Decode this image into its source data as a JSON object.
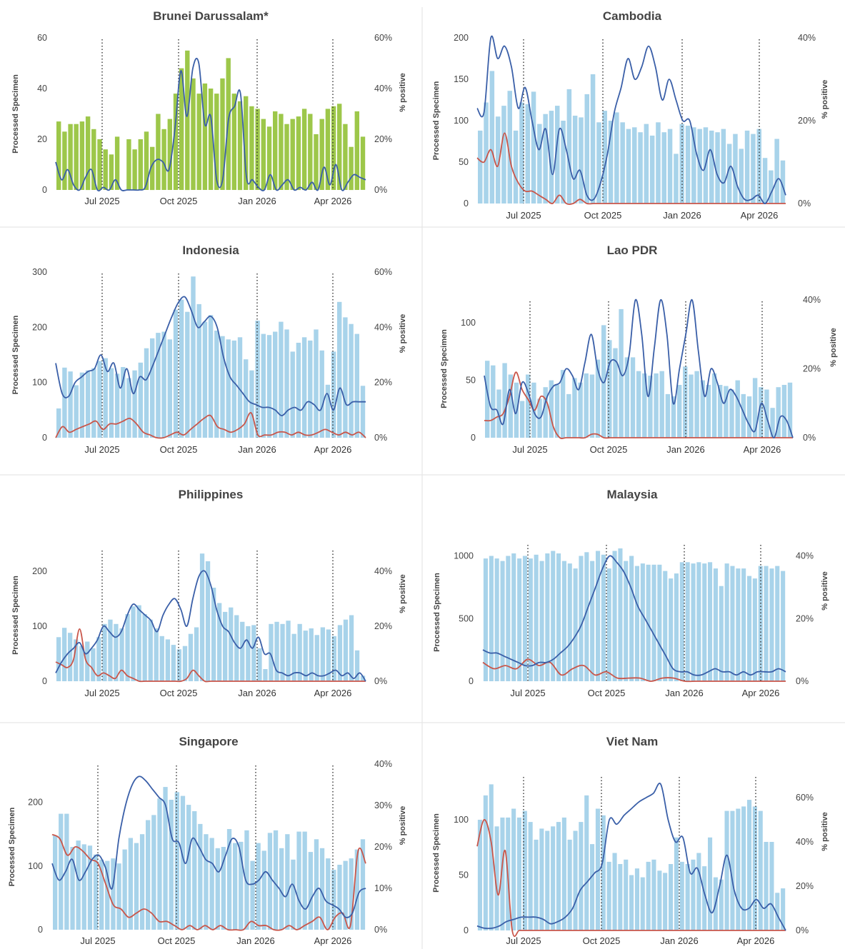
{
  "colors": {
    "bar_default": "#a8d3ea",
    "bar_brunei": "#9dc74a",
    "line_blue": "#3a5fa8",
    "line_red": "#c9564a",
    "divider": "#e2e2e2",
    "dotted_marker": "#333333"
  },
  "shared": {
    "left_axis_label": "Processed Specimen",
    "right_axis_label": "% positive",
    "month_markers": [
      "Jul 2025",
      "Oct 2025",
      "Jan 2026",
      "Apr 2026"
    ]
  },
  "chart_data": [
    {
      "type": "bar",
      "title": "Brunei Darussalam*",
      "ylabel": "Processed Specimen",
      "y2label": "% positive",
      "ylim": [
        0,
        60
      ],
      "yticks": [
        0,
        20,
        40,
        60
      ],
      "y2lim": [
        0,
        60
      ],
      "y2ticks": [
        "0%",
        "20%",
        "40%",
        "60%"
      ],
      "x": [
        "Jul 2025",
        "Oct 2025",
        "Jan 2026",
        "Apr 2026"
      ],
      "bar_color": "#9dc74a",
      "bars": [
        27,
        23,
        26,
        26,
        27,
        29,
        24,
        20,
        16,
        14,
        21,
        0,
        20,
        16,
        20,
        23,
        17,
        30,
        24,
        28,
        38,
        48,
        55,
        44,
        38,
        42,
        40,
        38,
        44,
        52,
        38,
        35,
        37,
        33,
        32,
        28,
        25,
        31,
        30,
        26,
        28,
        29,
        32,
        30,
        22,
        28,
        32,
        33,
        34,
        26,
        17,
        31,
        21
      ],
      "blue": [
        11,
        4,
        8,
        2,
        0,
        5,
        8,
        0,
        1,
        0,
        4,
        0,
        0,
        0,
        0,
        1,
        9,
        12,
        11,
        8,
        24,
        47,
        29,
        48,
        50,
        26,
        29,
        4,
        4,
        28,
        33,
        38,
        5,
        4,
        1,
        0,
        6,
        0,
        2,
        4,
        0,
        1,
        0,
        3,
        0,
        9,
        2,
        10,
        0,
        3,
        6,
        5,
        4
      ],
      "red": []
    },
    {
      "type": "bar",
      "title": "Cambodia",
      "ylabel": "Processed Specimen",
      "y2label": "% positive",
      "ylim": [
        0,
        200
      ],
      "yticks": [
        0,
        50,
        100,
        150,
        200
      ],
      "y2lim": [
        0,
        40
      ],
      "y2ticks": [
        "0%",
        "20%",
        "40%"
      ],
      "x": [
        "Jul 2025",
        "Oct 2025",
        "Jan 2026",
        "Apr 2026"
      ],
      "bar_color": "#a8d3ea",
      "bars": [
        88,
        122,
        160,
        105,
        118,
        136,
        88,
        122,
        120,
        135,
        96,
        108,
        112,
        118,
        100,
        138,
        106,
        104,
        132,
        156,
        98,
        112,
        100,
        110,
        98,
        90,
        92,
        86,
        96,
        82,
        98,
        86,
        90,
        60,
        96,
        94,
        92,
        90,
        92,
        88,
        86,
        90,
        72,
        84,
        66,
        88,
        84,
        90,
        55,
        40,
        78,
        52
      ],
      "blue": [
        23,
        22,
        40,
        35,
        38,
        33,
        23,
        28,
        20,
        13,
        18,
        7,
        18,
        13,
        6,
        8,
        2,
        1,
        5,
        12,
        22,
        28,
        35,
        30,
        33,
        38,
        33,
        25,
        30,
        25,
        20,
        20,
        12,
        8,
        13,
        7,
        5,
        9,
        4,
        1,
        1,
        2,
        0,
        3,
        6,
        2
      ],
      "red": [
        11,
        10,
        13,
        9,
        17,
        9,
        5,
        3,
        3,
        2,
        1,
        0,
        2,
        0,
        0,
        1,
        0,
        0,
        0,
        0,
        0,
        0,
        0,
        0,
        0,
        0,
        0,
        0,
        0,
        0,
        0,
        0,
        0,
        0,
        0,
        0,
        0,
        0,
        0,
        0,
        0,
        0,
        0,
        0,
        0,
        0
      ]
    },
    {
      "type": "bar",
      "title": "Indonesia",
      "ylabel": "Processed Specimen",
      "y2label": "% positive",
      "ylim": [
        0,
        300
      ],
      "yticks": [
        0,
        100,
        200,
        300
      ],
      "y2lim": [
        0,
        60
      ],
      "y2ticks": [
        "0%",
        "20%",
        "40%",
        "60%"
      ],
      "x": [
        "Jul 2025",
        "Oct 2025",
        "Jan 2026",
        "Apr 2026"
      ],
      "bar_color": "#a8d3ea",
      "bars": [
        53,
        127,
        120,
        95,
        118,
        122,
        126,
        139,
        144,
        126,
        116,
        128,
        108,
        122,
        136,
        162,
        180,
        190,
        192,
        178,
        232,
        250,
        228,
        292,
        242,
        210,
        222,
        194,
        184,
        178,
        176,
        182,
        142,
        122,
        212,
        188,
        186,
        192,
        210,
        196,
        156,
        172,
        182,
        176,
        196,
        158,
        96,
        156,
        246,
        218,
        206,
        188,
        94
      ],
      "blue": [
        27,
        16,
        15,
        20,
        22,
        24,
        25,
        30,
        24,
        27,
        18,
        25,
        16,
        22,
        21,
        26,
        32,
        38,
        44,
        49,
        51,
        46,
        40,
        42,
        44,
        40,
        29,
        22,
        19,
        16,
        13,
        12,
        11,
        11,
        10,
        8,
        10,
        11,
        10,
        13,
        12,
        10,
        16,
        10,
        18,
        12,
        13,
        13,
        13
      ],
      "red": [
        0,
        4,
        2,
        3,
        4,
        5,
        6,
        3,
        5,
        5,
        6,
        7,
        5,
        2,
        1,
        0,
        0,
        1,
        2,
        1,
        3,
        5,
        7,
        8,
        4,
        3,
        2,
        3,
        5,
        9,
        1,
        1,
        1,
        2,
        2,
        1,
        2,
        1,
        1,
        2,
        3,
        2,
        1,
        2,
        1,
        2,
        0
      ]
    },
    {
      "type": "bar",
      "title": "Lao PDR",
      "ylabel": "Processed Specimen",
      "y2label": "% positive",
      "ylim": [
        0,
        120
      ],
      "yticks": [
        0,
        50,
        100
      ],
      "y2lim": [
        0,
        40
      ],
      "y2ticks": [
        "0%",
        "20%",
        "40%"
      ],
      "x": [
        "Jul 2025",
        "Oct 2025",
        "Jan 2026",
        "Apr 2026"
      ],
      "bar_color": "#a8d3ea",
      "bars": [
        67,
        63,
        42,
        65,
        55,
        48,
        32,
        55,
        48,
        34,
        44,
        50,
        46,
        59,
        38,
        52,
        48,
        56,
        55,
        68,
        98,
        85,
        78,
        112,
        70,
        70,
        58,
        56,
        54,
        56,
        58,
        38,
        36,
        46,
        62,
        55,
        58,
        50,
        46,
        56,
        46,
        45,
        42,
        50,
        38,
        36,
        52,
        44,
        42,
        26,
        44,
        46,
        48
      ],
      "blue": [
        18,
        9,
        8,
        4,
        14,
        7,
        16,
        13,
        7,
        6,
        12,
        15,
        16,
        20,
        18,
        14,
        22,
        30,
        20,
        16,
        22,
        22,
        18,
        24,
        40,
        30,
        12,
        26,
        40,
        30,
        10,
        20,
        30,
        40,
        25,
        12,
        20,
        16,
        10,
        14,
        12,
        8,
        4,
        2,
        10,
        5,
        0,
        6,
        5,
        0
      ],
      "red": [
        5,
        5,
        6,
        7,
        12,
        19,
        14,
        11,
        8,
        12,
        10,
        3,
        0,
        0,
        0,
        0,
        0,
        1,
        1,
        0,
        0,
        0,
        0,
        0,
        0,
        0,
        0,
        0,
        0,
        0,
        0,
        0,
        0,
        0,
        0,
        0,
        0,
        0,
        0,
        0,
        0,
        0,
        0,
        0,
        0,
        0,
        0,
        0,
        0,
        0
      ]
    },
    {
      "type": "bar",
      "title": "Philippines",
      "ylabel": "Processed Specimen",
      "y2label": "% positive",
      "ylim": [
        0,
        240
      ],
      "yticks": [
        0,
        100,
        200
      ],
      "y2lim": [
        0,
        48
      ],
      "y2ticks": [
        "0%",
        "20%",
        "40%"
      ],
      "x": [
        "Jul 2025",
        "Oct 2025",
        "Jan 2026",
        "Apr 2026"
      ],
      "bar_color": "#a8d3ea",
      "bars": [
        80,
        97,
        88,
        76,
        64,
        72,
        60,
        80,
        104,
        112,
        104,
        96,
        122,
        136,
        138,
        122,
        112,
        96,
        82,
        76,
        66,
        58,
        64,
        86,
        98,
        232,
        218,
        170,
        142,
        126,
        134,
        120,
        108,
        100,
        102,
        60,
        22,
        104,
        108,
        104,
        110,
        86,
        104,
        92,
        96,
        84,
        98,
        94,
        82,
        102,
        112,
        120,
        56,
        10
      ],
      "blue": [
        3,
        7,
        10,
        12,
        14,
        10,
        12,
        15,
        20,
        18,
        16,
        18,
        24,
        28,
        26,
        24,
        22,
        18,
        24,
        28,
        30,
        26,
        20,
        30,
        38,
        40,
        35,
        26,
        20,
        18,
        14,
        12,
        15,
        12,
        16,
        10,
        10,
        4,
        3,
        2,
        3,
        3,
        2,
        3,
        2,
        2,
        3,
        4,
        2,
        3,
        1,
        3,
        0
      ],
      "red": [
        7,
        6,
        5,
        8,
        19,
        8,
        5,
        2,
        3,
        2,
        1,
        4,
        2,
        1,
        0,
        0,
        0,
        0,
        0,
        0,
        0,
        0,
        1,
        4,
        2,
        0,
        0,
        0,
        0,
        0,
        0,
        0,
        0,
        0,
        0,
        0,
        0,
        0,
        0,
        0,
        0,
        0,
        0,
        0,
        0,
        0,
        0,
        0,
        0,
        0,
        0,
        0,
        0
      ]
    },
    {
      "type": "bar",
      "title": "Malaysia",
      "ylabel": "Processed Specimen",
      "y2label": "% positive",
      "ylim": [
        0,
        1100
      ],
      "yticks": [
        0,
        500,
        1000
      ],
      "y2lim": [
        0,
        44
      ],
      "y2ticks": [
        "0%",
        "20%",
        "40%"
      ],
      "x": [
        "Jul 2025",
        "Oct 2025",
        "Jan 2026",
        "Apr 2026"
      ],
      "bar_color": "#a8d3ea",
      "bars": [
        980,
        1000,
        980,
        960,
        1000,
        1020,
        980,
        1000,
        980,
        1010,
        960,
        1020,
        1040,
        1020,
        960,
        940,
        900,
        1000,
        1030,
        960,
        1040,
        1010,
        900,
        1040,
        1060,
        960,
        1000,
        920,
        940,
        930,
        930,
        930,
        880,
        820,
        860,
        950,
        950,
        940,
        950,
        940,
        950,
        900,
        760,
        940,
        920,
        900,
        900,
        840,
        820,
        920,
        920,
        900,
        920,
        880
      ],
      "blue": [
        10,
        9,
        9,
        8,
        7,
        6,
        5,
        5,
        6,
        6,
        7,
        9,
        11,
        14,
        18,
        24,
        30,
        36,
        40,
        38,
        35,
        30,
        24,
        20,
        16,
        12,
        8,
        4,
        3,
        3,
        2,
        2,
        3,
        4,
        3,
        3,
        2,
        3,
        2,
        3,
        3,
        3,
        4,
        3
      ],
      "red": [
        6,
        4,
        5,
        4,
        7,
        5,
        6,
        2,
        4,
        5,
        2,
        3,
        1,
        1,
        1,
        0,
        1,
        1,
        0,
        0,
        0,
        0,
        0,
        0,
        0,
        0,
        0,
        0
      ]
    },
    {
      "type": "bar",
      "title": "Singapore",
      "ylabel": "Processed Specimen",
      "y2label": "% positive",
      "ylim": [
        0,
        260
      ],
      "yticks": [
        0,
        100,
        200
      ],
      "y2lim": [
        0,
        40
      ],
      "y2ticks": [
        "0%",
        "10%",
        "20%",
        "30%",
        "40%"
      ],
      "x": [
        "Jul 2025",
        "Oct 2025",
        "Jan 2026",
        "Apr 2026"
      ],
      "bar_color": "#a8d3ea",
      "bars": [
        148,
        182,
        182,
        130,
        140,
        134,
        132,
        118,
        110,
        108,
        112,
        104,
        126,
        144,
        136,
        150,
        172,
        180,
        206,
        224,
        204,
        216,
        210,
        196,
        186,
        166,
        150,
        144,
        128,
        130,
        158,
        136,
        138,
        156,
        108,
        136,
        124,
        152,
        156,
        128,
        150,
        110,
        154,
        154,
        122,
        142,
        128,
        112,
        94,
        102,
        108,
        112,
        126,
        142
      ],
      "blue": [
        16,
        12,
        14,
        17,
        12,
        14,
        17,
        18,
        15,
        10,
        22,
        30,
        35,
        37,
        36,
        34,
        32,
        30,
        22,
        21,
        16,
        22,
        20,
        17,
        16,
        14,
        18,
        22,
        20,
        12,
        11,
        12,
        14,
        12,
        10,
        8,
        11,
        7,
        5,
        8,
        10,
        7,
        6,
        5,
        3,
        4,
        9,
        10
      ],
      "red": [
        23,
        22,
        18,
        20,
        19,
        17,
        16,
        11,
        6,
        5,
        3,
        4,
        5,
        4,
        2,
        2,
        1,
        0,
        1,
        0,
        1,
        0,
        1,
        0,
        0,
        0,
        2,
        1,
        1,
        0,
        0,
        1,
        0,
        1,
        2,
        3,
        0,
        3,
        4,
        1,
        19,
        16
      ]
    },
    {
      "type": "bar",
      "title": "Viet Nam",
      "ylabel": "Processed Specimen",
      "y2label": "% positive",
      "ylim": [
        0,
        140
      ],
      "yticks": [
        0,
        50,
        100
      ],
      "y2lim": [
        0,
        70
      ],
      "y2ticks": [
        "0%",
        "20%",
        "40%",
        "60%"
      ],
      "x": [
        "Jul 2025",
        "Oct 2025",
        "Jan 2026",
        "Apr 2026"
      ],
      "bar_color": "#a8d3ea",
      "bars": [
        100,
        122,
        132,
        94,
        102,
        102,
        110,
        102,
        108,
        98,
        82,
        92,
        90,
        94,
        98,
        102,
        82,
        90,
        98,
        122,
        78,
        110,
        104,
        62,
        70,
        60,
        64,
        50,
        56,
        48,
        62,
        64,
        54,
        52,
        60,
        84,
        62,
        60,
        64,
        70,
        58,
        84,
        48,
        46,
        108,
        108,
        110,
        112,
        118,
        112,
        108,
        80,
        80,
        34,
        38
      ],
      "blue": [
        2,
        1,
        1,
        2,
        4,
        5,
        6,
        6,
        6,
        5,
        3,
        4,
        6,
        10,
        18,
        22,
        26,
        30,
        50,
        48,
        52,
        55,
        58,
        60,
        62,
        66,
        50,
        40,
        42,
        26,
        28,
        16,
        8,
        20,
        34,
        18,
        10,
        10,
        14,
        10,
        12,
        6,
        0
      ],
      "red": [
        38,
        50,
        40,
        16,
        36,
        0,
        0,
        0,
        0,
        0,
        0,
        0,
        0,
        0,
        0,
        0,
        0,
        0,
        0,
        0,
        0,
        0,
        0,
        0,
        0,
        0,
        0,
        0,
        0,
        0,
        0,
        0,
        0,
        0,
        0,
        0,
        0,
        0,
        0,
        0,
        0,
        0,
        0,
        0,
        0
      ]
    }
  ]
}
